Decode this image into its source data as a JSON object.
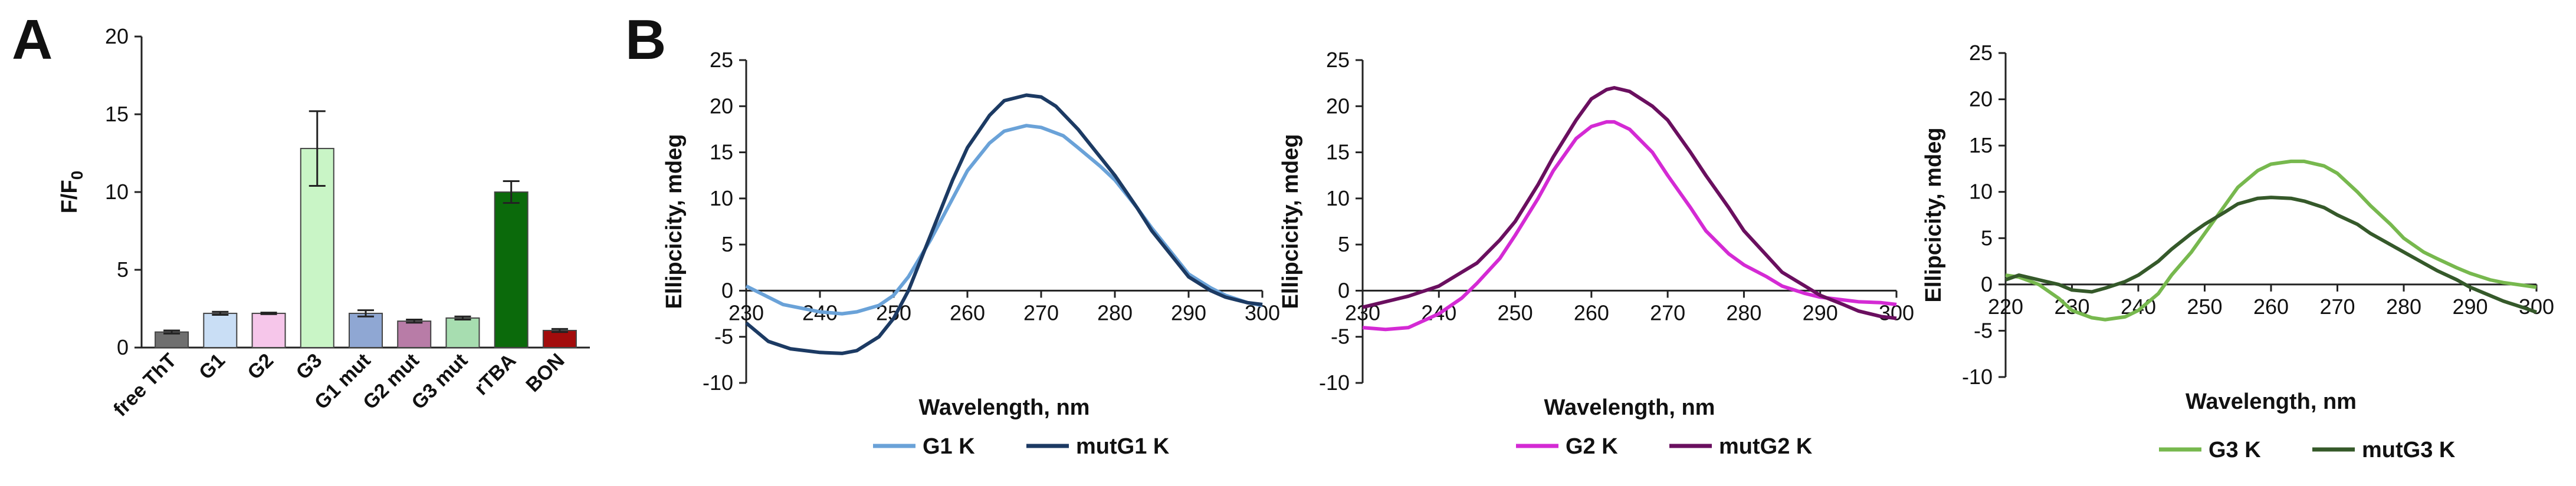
{
  "panel_labels": [
    "A",
    "B"
  ],
  "chart_data": [
    {
      "type": "bar",
      "title": "",
      "ylabel": "F/F0",
      "ylabel_main": "F/F",
      "ylabel_sub": "0",
      "ylim": [
        0,
        20
      ],
      "yticks": [
        0,
        5,
        10,
        15,
        20
      ],
      "categories": [
        "free ThT",
        "G1",
        "G2",
        "G3",
        "G1 mut",
        "G2 mut",
        "G3 mut",
        "rTBA",
        "BON"
      ],
      "values": [
        1.0,
        2.2,
        2.2,
        12.8,
        2.2,
        1.7,
        1.9,
        10.0,
        1.1
      ],
      "errors": [
        0.1,
        0.1,
        0.05,
        2.4,
        0.2,
        0.1,
        0.1,
        0.7,
        0.1
      ],
      "colors": [
        "#6f6f6f",
        "#c9def5",
        "#f6c6ea",
        "#c9f5c6",
        "#8fa7d3",
        "#b87ca7",
        "#a7ddb0",
        "#0b6a0b",
        "#a30c0c"
      ]
    },
    {
      "type": "line",
      "xlabel": "Wavelength, nm",
      "ylabel": "Ellipcicity, mdeg",
      "xlim": [
        230,
        300
      ],
      "ylim": [
        -10,
        25
      ],
      "xticks": [
        230,
        240,
        250,
        260,
        270,
        280,
        290,
        300
      ],
      "yticks": [
        -10,
        -5,
        0,
        5,
        10,
        15,
        20,
        25
      ],
      "series": [
        {
          "name": "G1 K",
          "color": "#6aa2d8",
          "x": [
            230,
            235,
            240,
            243,
            245,
            248,
            250,
            252,
            255,
            258,
            260,
            263,
            265,
            268,
            270,
            273,
            275,
            278,
            280,
            283,
            285,
            288,
            290,
            293,
            295,
            298,
            300
          ],
          "y": [
            0.5,
            -1.5,
            -2.3,
            -2.5,
            -2.3,
            -1.6,
            -0.5,
            1.5,
            5.5,
            10.0,
            13.0,
            16.0,
            17.3,
            17.9,
            17.7,
            16.8,
            15.5,
            13.5,
            12.0,
            9.0,
            6.8,
            3.8,
            1.8,
            0.3,
            -0.5,
            -1.3,
            -1.6
          ]
        },
        {
          "name": "mutG1 K",
          "color": "#1c3a63",
          "x": [
            230,
            233,
            236,
            240,
            243,
            245,
            248,
            250,
            252,
            255,
            258,
            260,
            263,
            265,
            268,
            270,
            272,
            275,
            278,
            280,
            283,
            285,
            288,
            290,
            293,
            295,
            298,
            300
          ],
          "y": [
            -3.5,
            -5.5,
            -6.3,
            -6.7,
            -6.8,
            -6.5,
            -5.0,
            -3.0,
            0.0,
            6.0,
            12.0,
            15.5,
            19.0,
            20.6,
            21.2,
            21.0,
            20.0,
            17.5,
            14.5,
            12.5,
            9.0,
            6.5,
            3.5,
            1.5,
            0.0,
            -0.7,
            -1.3,
            -1.5
          ]
        }
      ],
      "legend": [
        "G1 K",
        "mutG1 K"
      ]
    },
    {
      "type": "line",
      "xlabel": "Wavelength, nm",
      "ylabel": "Ellipcicity, mdeg",
      "xlim": [
        230,
        300
      ],
      "ylim": [
        -10,
        25
      ],
      "xticks": [
        230,
        240,
        250,
        260,
        270,
        280,
        290,
        300
      ],
      "yticks": [
        -10,
        -5,
        0,
        5,
        10,
        15,
        20,
        25
      ],
      "series": [
        {
          "name": "G2 K",
          "color": "#d42ad4",
          "x": [
            230,
            233,
            236,
            240,
            243,
            245,
            248,
            250,
            253,
            255,
            258,
            260,
            262,
            263,
            265,
            268,
            270,
            273,
            275,
            278,
            280,
            283,
            285,
            288,
            290,
            293,
            295,
            298,
            300
          ],
          "y": [
            -4.0,
            -4.2,
            -4.0,
            -2.5,
            -0.8,
            0.8,
            3.5,
            6.0,
            10.0,
            13.0,
            16.5,
            17.8,
            18.3,
            18.3,
            17.5,
            15.0,
            12.5,
            9.0,
            6.5,
            4.0,
            2.8,
            1.5,
            0.5,
            -0.3,
            -0.7,
            -1.0,
            -1.2,
            -1.3,
            -1.5
          ]
        },
        {
          "name": "mutG2 K",
          "color": "#6a0f5f",
          "x": [
            230,
            233,
            236,
            240,
            243,
            245,
            248,
            250,
            253,
            255,
            258,
            260,
            262,
            263,
            265,
            268,
            270,
            273,
            275,
            278,
            280,
            283,
            285,
            288,
            290,
            293,
            295,
            298,
            300
          ],
          "y": [
            -1.8,
            -1.2,
            -0.6,
            0.5,
            2.0,
            3.0,
            5.5,
            7.5,
            11.5,
            14.5,
            18.5,
            20.8,
            21.8,
            22.0,
            21.6,
            20.0,
            18.5,
            15.0,
            12.5,
            9.0,
            6.5,
            3.8,
            2.0,
            0.5,
            -0.5,
            -1.5,
            -2.2,
            -2.8,
            -3.0
          ]
        }
      ],
      "legend": [
        "G2 K",
        "mutG2 K"
      ]
    },
    {
      "type": "line",
      "xlabel": "Wavelength, nm",
      "ylabel": "Ellipcicity, mdeg",
      "xlim": [
        220,
        300
      ],
      "ylim": [
        -10,
        25
      ],
      "xticks": [
        220,
        230,
        240,
        250,
        260,
        270,
        280,
        290,
        300
      ],
      "yticks": [
        -10,
        -5,
        0,
        5,
        10,
        15,
        20,
        25
      ],
      "series": [
        {
          "name": "G3 K",
          "color": "#77b84e",
          "x": [
            220,
            222,
            225,
            228,
            230,
            233,
            235,
            238,
            240,
            243,
            245,
            248,
            250,
            253,
            255,
            258,
            260,
            263,
            265,
            268,
            270,
            273,
            275,
            278,
            280,
            283,
            285,
            288,
            290,
            293,
            295,
            298,
            300
          ],
          "y": [
            1.0,
            0.8,
            0.0,
            -1.5,
            -2.8,
            -3.6,
            -3.8,
            -3.5,
            -2.8,
            -1.0,
            1.0,
            3.5,
            5.5,
            8.5,
            10.5,
            12.3,
            13.0,
            13.3,
            13.3,
            12.8,
            12.0,
            10.0,
            8.5,
            6.5,
            5.0,
            3.5,
            2.8,
            1.8,
            1.2,
            0.5,
            0.2,
            -0.1,
            -0.3
          ]
        },
        {
          "name": "mutG3 K",
          "color": "#35592a",
          "x": [
            220,
            222,
            225,
            228,
            230,
            233,
            235,
            238,
            240,
            243,
            245,
            248,
            250,
            253,
            255,
            258,
            260,
            263,
            265,
            268,
            270,
            273,
            275,
            278,
            280,
            283,
            285,
            288,
            290,
            293,
            295,
            298,
            300
          ],
          "y": [
            0.5,
            1.0,
            0.5,
            0.0,
            -0.6,
            -0.8,
            -0.4,
            0.3,
            1.0,
            2.5,
            3.8,
            5.5,
            6.5,
            7.8,
            8.7,
            9.3,
            9.4,
            9.3,
            9.0,
            8.3,
            7.5,
            6.5,
            5.5,
            4.3,
            3.5,
            2.3,
            1.5,
            0.5,
            -0.3,
            -1.2,
            -1.8,
            -2.5,
            -3.0
          ]
        }
      ],
      "legend": [
        "G3 K",
        "mutG3 K"
      ]
    }
  ]
}
